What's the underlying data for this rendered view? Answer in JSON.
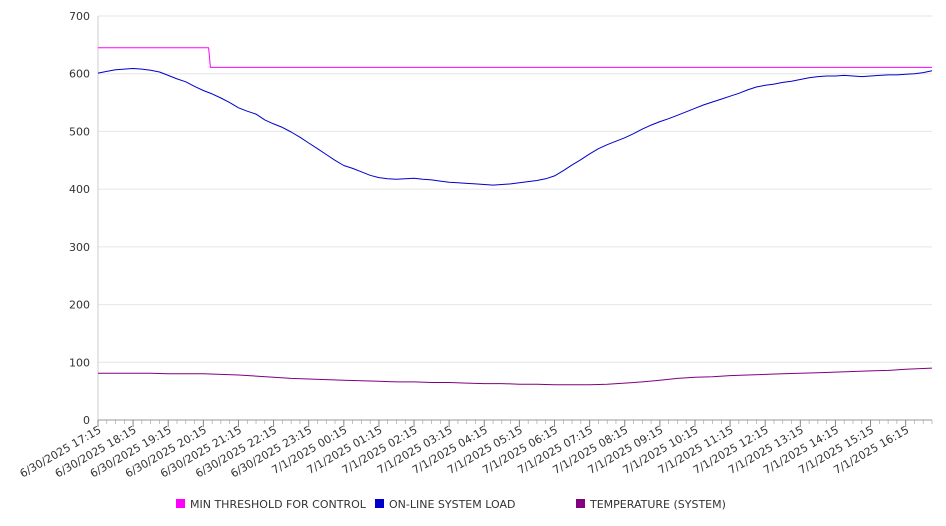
{
  "chart_data": {
    "type": "line",
    "title": "",
    "xlabel": "",
    "ylabel": "",
    "ylim": [
      0,
      700
    ],
    "yticks": [
      0,
      100,
      200,
      300,
      400,
      500,
      600,
      700
    ],
    "grid": true,
    "legend_position": "bottom",
    "x_tick_labels": [
      "6/30/2025 17:15",
      "6/30/2025 18:15",
      "6/30/2025 19:15",
      "6/30/2025 20:15",
      "6/30/2025 21:15",
      "6/30/2025 22:15",
      "6/30/2025 23:15",
      "7/1/2025 00:15",
      "7/1/2025 01:15",
      "7/1/2025 02:15",
      "7/1/2025 03:15",
      "7/1/2025 04:15",
      "7/1/2025 05:15",
      "7/1/2025 06:15",
      "7/1/2025 07:15",
      "7/1/2025 08:15",
      "7/1/2025 09:15",
      "7/1/2025 10:15",
      "7/1/2025 11:15",
      "7/1/2025 12:15",
      "7/1/2025 13:15",
      "7/1/2025 14:15",
      "7/1/2025 15:15",
      "7/1/2025 16:15"
    ],
    "x_start": "6/30/2025 17:15",
    "x_end": "7/1/2025 17:00",
    "x_hours_span": 23.75,
    "series": [
      {
        "name": "MIN THRESHOLD FOR CONTROL",
        "color": "#ff00ff",
        "x_hours": [
          0,
          3.15,
          3.2,
          23.75
        ],
        "values": [
          645,
          645,
          611,
          611
        ]
      },
      {
        "name": "ON-LINE SYSTEM LOAD",
        "color": "#0000cc",
        "x_hours": [
          0,
          0.25,
          0.5,
          0.75,
          1.0,
          1.25,
          1.5,
          1.75,
          2.0,
          2.25,
          2.5,
          2.75,
          3.0,
          3.25,
          3.5,
          3.75,
          4.0,
          4.25,
          4.5,
          4.75,
          5.0,
          5.25,
          5.5,
          5.75,
          6.0,
          6.25,
          6.5,
          6.75,
          7.0,
          7.25,
          7.5,
          7.75,
          8.0,
          8.25,
          8.5,
          8.75,
          9.0,
          9.25,
          9.5,
          9.75,
          10.0,
          10.25,
          10.5,
          10.75,
          11.0,
          11.25,
          11.5,
          11.75,
          12.0,
          12.25,
          12.5,
          12.75,
          13.0,
          13.25,
          13.5,
          13.75,
          14.0,
          14.25,
          14.5,
          14.75,
          15.0,
          15.25,
          15.5,
          15.75,
          16.0,
          16.25,
          16.5,
          16.75,
          17.0,
          17.25,
          17.5,
          17.75,
          18.0,
          18.25,
          18.5,
          18.75,
          19.0,
          19.25,
          19.5,
          19.75,
          20.0,
          20.25,
          20.5,
          20.75,
          21.0,
          21.25,
          21.5,
          21.75,
          22.0,
          22.25,
          22.5,
          22.75,
          23.0,
          23.25,
          23.5,
          23.75
        ],
        "values": [
          601,
          604,
          607,
          608,
          609,
          608,
          606,
          603,
          597,
          591,
          586,
          578,
          571,
          565,
          558,
          550,
          541,
          535,
          530,
          520,
          513,
          507,
          499,
          490,
          480,
          470,
          460,
          450,
          441,
          436,
          430,
          424,
          420,
          418,
          417,
          418,
          419,
          417,
          416,
          414,
          412,
          411,
          410,
          409,
          408,
          407,
          408,
          409,
          411,
          413,
          415,
          418,
          423,
          432,
          442,
          451,
          461,
          470,
          477,
          483,
          489,
          496,
          504,
          511,
          517,
          522,
          528,
          534,
          540,
          546,
          551,
          556,
          561,
          566,
          572,
          577,
          580,
          582,
          585,
          587,
          590,
          593,
          595,
          596,
          596,
          597,
          596,
          595,
          596,
          597,
          598,
          598,
          599,
          600,
          602,
          605
        ]
      },
      {
        "name": "TEMPERATURE (SYSTEM)",
        "color": "#800080",
        "x_hours": [
          0,
          0.5,
          1.0,
          1.5,
          2.0,
          2.5,
          3.0,
          3.5,
          4.0,
          4.5,
          5.0,
          5.5,
          6.0,
          6.5,
          7.0,
          7.5,
          8.0,
          8.5,
          9.0,
          9.5,
          10.0,
          10.5,
          11.0,
          11.5,
          12.0,
          12.5,
          13.0,
          13.5,
          14.0,
          14.5,
          15.0,
          15.5,
          16.0,
          16.5,
          17.0,
          17.5,
          18.0,
          18.5,
          19.0,
          19.5,
          20.0,
          20.5,
          21.0,
          21.5,
          22.0,
          22.5,
          23.0,
          23.75
        ],
        "values": [
          81,
          81,
          81,
          81,
          80,
          80,
          80,
          79,
          78,
          76,
          74,
          72,
          71,
          70,
          69,
          68,
          67,
          66,
          66,
          65,
          65,
          64,
          63,
          63,
          62,
          62,
          61,
          61,
          61,
          62,
          64,
          66,
          69,
          72,
          74,
          75,
          77,
          78,
          79,
          80,
          81,
          82,
          83,
          84,
          85,
          86,
          88,
          90
        ]
      }
    ]
  }
}
